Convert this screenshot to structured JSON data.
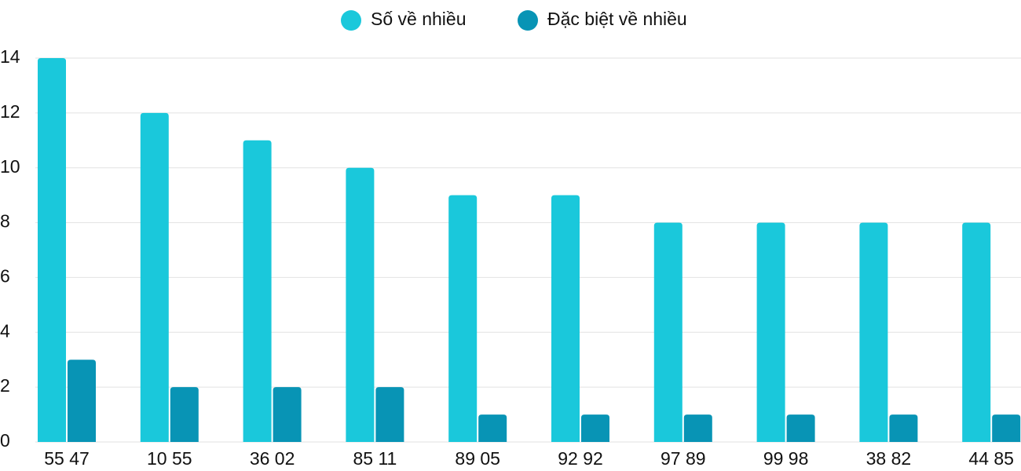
{
  "chart_data": {
    "type": "bar",
    "categories": [
      "55 47",
      "10 55",
      "36 02",
      "85 11",
      "89 05",
      "92 92",
      "97 89",
      "99 98",
      "38 82",
      "44 85"
    ],
    "series": [
      {
        "name": "Số về nhiều",
        "color": "#1ac8db",
        "values": [
          14,
          12,
          11,
          10,
          9,
          9,
          8,
          8,
          8,
          8
        ]
      },
      {
        "name": "Đặc biệt về nhiều",
        "color": "#0894b5",
        "values": [
          3,
          2,
          2,
          2,
          1,
          1,
          1,
          1,
          1,
          1
        ]
      }
    ],
    "ylim": [
      0,
      14
    ],
    "yticks": [
      0,
      2,
      4,
      6,
      8,
      10,
      12,
      14
    ],
    "grid": true
  }
}
